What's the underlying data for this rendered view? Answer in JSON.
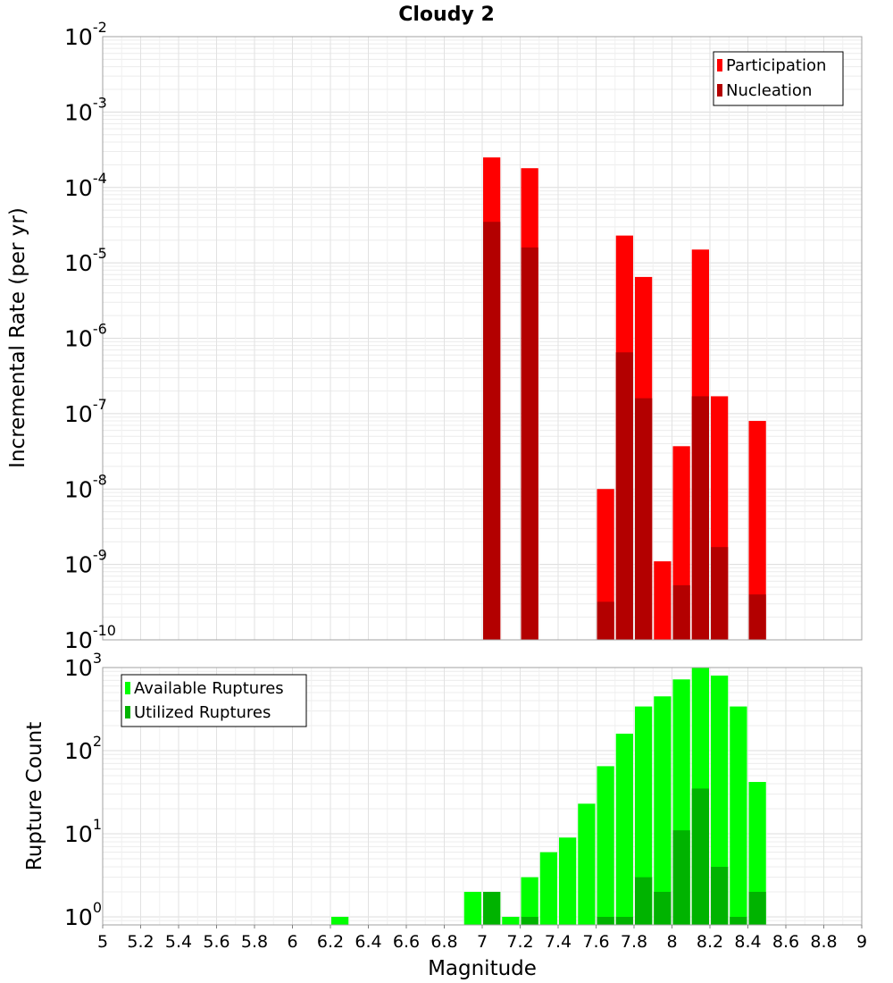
{
  "chart_data": [
    {
      "type": "bar",
      "title": "Cloudy 2",
      "xlabel": "",
      "ylabel": "Incremental Rate (per yr)",
      "yscale": "log",
      "ylim": [
        1e-10,
        0.01
      ],
      "xlim": [
        5,
        9
      ],
      "y_tick_labels": [
        {
          "base": "10",
          "exp": "-10",
          "value": 1e-10
        },
        {
          "base": "10",
          "exp": "-9",
          "value": 1e-09
        },
        {
          "base": "10",
          "exp": "-8",
          "value": 1e-08
        },
        {
          "base": "10",
          "exp": "-7",
          "value": 1e-07
        },
        {
          "base": "10",
          "exp": "-6",
          "value": 1e-06
        },
        {
          "base": "10",
          "exp": "-5",
          "value": 1e-05
        },
        {
          "base": "10",
          "exp": "-4",
          "value": 0.0001
        },
        {
          "base": "10",
          "exp": "-3",
          "value": 0.001
        },
        {
          "base": "10",
          "exp": "-2",
          "value": 0.01
        }
      ],
      "grid": true,
      "legend_position": "top-right",
      "series": [
        {
          "name": "Participation",
          "color": "#ff0000",
          "points": [
            {
              "x": 7.05,
              "y": 0.00025
            },
            {
              "x": 7.25,
              "y": 0.00018
            },
            {
              "x": 7.65,
              "y": 1e-08
            },
            {
              "x": 7.75,
              "y": 2.3e-05
            },
            {
              "x": 7.85,
              "y": 6.5e-06
            },
            {
              "x": 7.95,
              "y": 1.1e-09
            },
            {
              "x": 8.05,
              "y": 3.7e-08
            },
            {
              "x": 8.15,
              "y": 1.5e-05
            },
            {
              "x": 8.25,
              "y": 1.7e-07
            },
            {
              "x": 8.45,
              "y": 8e-08
            }
          ]
        },
        {
          "name": "Nucleation",
          "color": "#b30000",
          "points": [
            {
              "x": 7.05,
              "y": 3.5e-05
            },
            {
              "x": 7.25,
              "y": 1.6e-05
            },
            {
              "x": 7.65,
              "y": 3.2e-10
            },
            {
              "x": 7.75,
              "y": 6.5e-07
            },
            {
              "x": 7.85,
              "y": 1.6e-07
            },
            {
              "x": 8.05,
              "y": 5.3e-10
            },
            {
              "x": 8.15,
              "y": 1.7e-07
            },
            {
              "x": 8.25,
              "y": 1.7e-09
            },
            {
              "x": 8.45,
              "y": 4e-10
            }
          ]
        }
      ]
    },
    {
      "type": "bar",
      "title": "",
      "xlabel": "Magnitude",
      "ylabel": "Rupture Count",
      "yscale": "log",
      "ylim": [
        0.8,
        1000
      ],
      "xlim": [
        5,
        9
      ],
      "x_ticks": [
        "5",
        "5.2",
        "5.4",
        "5.6",
        "5.8",
        "6",
        "6.2",
        "6.4",
        "6.6",
        "6.8",
        "7",
        "7.2",
        "7.4",
        "7.6",
        "7.8",
        "8",
        "8.2",
        "8.4",
        "8.6",
        "8.8",
        "9"
      ],
      "y_tick_labels": [
        {
          "base": "10",
          "exp": "0",
          "value": 1
        },
        {
          "base": "10",
          "exp": "1",
          "value": 10
        },
        {
          "base": "10",
          "exp": "2",
          "value": 100
        },
        {
          "base": "10",
          "exp": "3",
          "value": 1000
        }
      ],
      "grid": true,
      "legend_position": "top-left",
      "series": [
        {
          "name": "Available Ruptures",
          "color": "#00ff00",
          "points": [
            {
              "x": 6.25,
              "y": 1
            },
            {
              "x": 6.95,
              "y": 2
            },
            {
              "x": 7.05,
              "y": 2
            },
            {
              "x": 7.15,
              "y": 1
            },
            {
              "x": 7.25,
              "y": 3
            },
            {
              "x": 7.35,
              "y": 6
            },
            {
              "x": 7.45,
              "y": 9
            },
            {
              "x": 7.55,
              "y": 23
            },
            {
              "x": 7.65,
              "y": 65
            },
            {
              "x": 7.75,
              "y": 160
            },
            {
              "x": 7.85,
              "y": 340
            },
            {
              "x": 7.95,
              "y": 450
            },
            {
              "x": 8.05,
              "y": 720
            },
            {
              "x": 8.15,
              "y": 1000
            },
            {
              "x": 8.25,
              "y": 800
            },
            {
              "x": 8.35,
              "y": 340
            },
            {
              "x": 8.45,
              "y": 42
            }
          ]
        },
        {
          "name": "Utilized Ruptures",
          "color": "#00b300",
          "points": [
            {
              "x": 7.05,
              "y": 2
            },
            {
              "x": 7.25,
              "y": 1
            },
            {
              "x": 7.65,
              "y": 1
            },
            {
              "x": 7.75,
              "y": 1
            },
            {
              "x": 7.85,
              "y": 3
            },
            {
              "x": 7.95,
              "y": 2
            },
            {
              "x": 8.05,
              "y": 11
            },
            {
              "x": 8.15,
              "y": 35
            },
            {
              "x": 8.25,
              "y": 4
            },
            {
              "x": 8.35,
              "y": 1
            },
            {
              "x": 8.45,
              "y": 2
            }
          ]
        }
      ]
    }
  ]
}
